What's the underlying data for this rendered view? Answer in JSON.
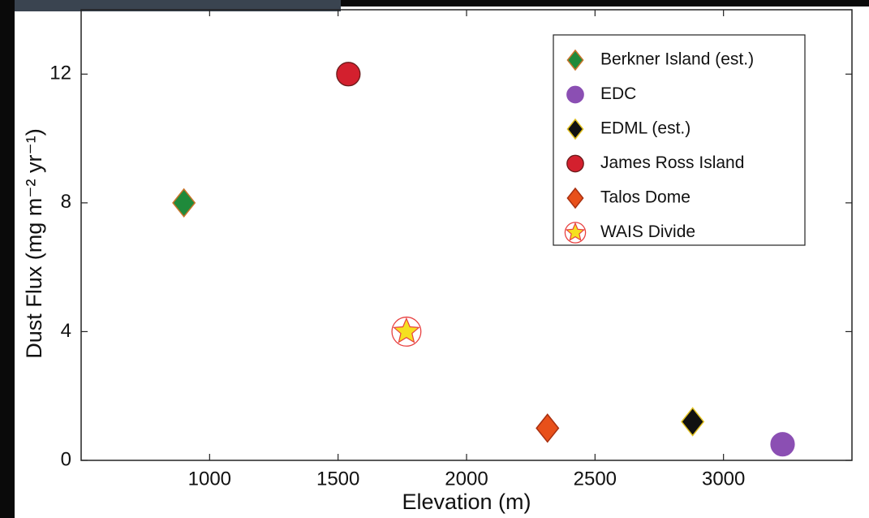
{
  "chart_data": {
    "type": "scatter",
    "x_label": "Elevation (m)",
    "y_label": "Dust Flux (mg m⁻² yr⁻¹)",
    "xlim": [
      500,
      3500
    ],
    "xticks": [
      1000,
      1500,
      2000,
      2500,
      3000
    ],
    "ylim": [
      0,
      14
    ],
    "yticks": [
      0,
      4,
      8,
      12
    ],
    "legend": "upper right",
    "series": [
      {
        "name": "Berkner Island (est.)",
        "color": "#1f8a3b",
        "edge": "#c8742a",
        "marker": "diamond",
        "x": [
          900
        ],
        "values": [
          8
        ]
      },
      {
        "name": "EDC",
        "color": "#8b4fb3",
        "edge": "#8b4fb3",
        "marker": "circle",
        "x": [
          3230
        ],
        "values": [
          0.5
        ]
      },
      {
        "name": "EDML (est.)",
        "color": "#111111",
        "edge": "#e0c020",
        "marker": "diamond",
        "x": [
          2880
        ],
        "values": [
          1.2
        ]
      },
      {
        "name": "James Ross Island",
        "color": "#d3202e",
        "edge": "#6a1a1a",
        "marker": "circle",
        "x": [
          1540
        ],
        "values": [
          12
        ]
      },
      {
        "name": "Talos Dome",
        "color": "#e8501a",
        "edge": "#a83010",
        "marker": "diamond",
        "x": [
          2315
        ],
        "values": [
          1
        ]
      },
      {
        "name": "WAIS Divide",
        "color": "#f5e020",
        "edge": "#e84040",
        "marker": "star",
        "x": [
          1766
        ],
        "values": [
          4
        ]
      }
    ]
  }
}
